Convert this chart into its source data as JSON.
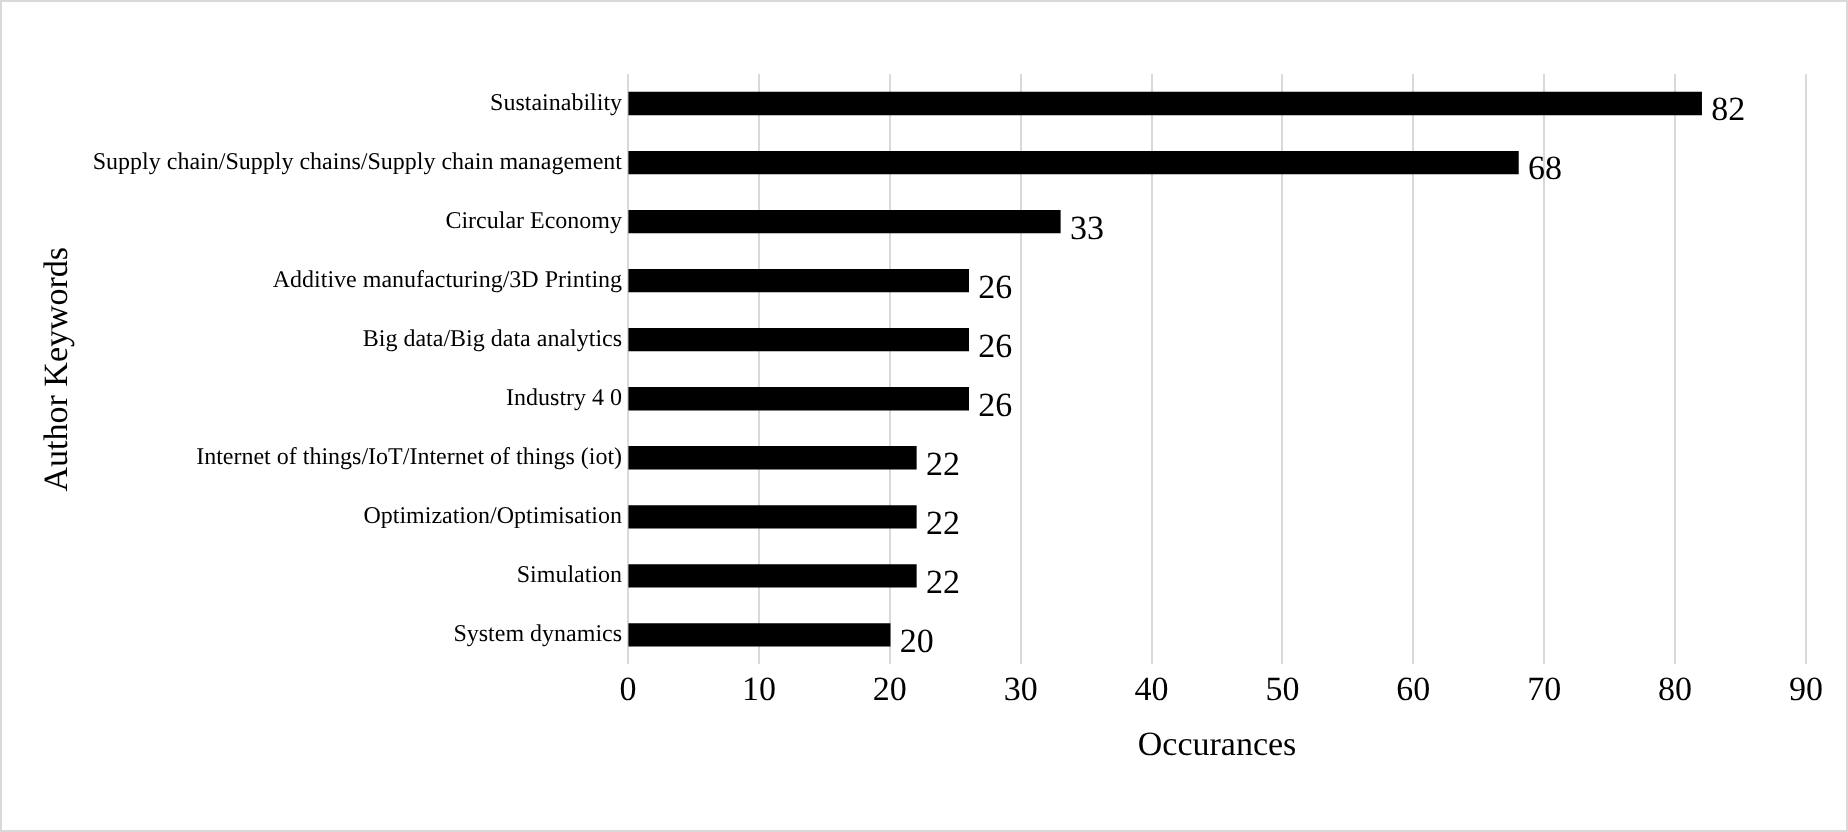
{
  "chart_data": {
    "type": "bar",
    "orientation": "horizontal",
    "xlabel": "Occurances",
    "ylabel": "Author Keywords",
    "categories": [
      "Sustainability",
      "Supply chain/Supply chains/Supply chain management",
      "Circular Economy",
      "Additive manufacturing/3D Printing",
      "Big data/Big data analytics",
      "Industry 4 0",
      "Internet of things/IoT/Internet of things (iot)",
      "Optimization/Optimisation",
      "Simulation",
      "System dynamics"
    ],
    "values": [
      82,
      68,
      33,
      26,
      26,
      26,
      22,
      22,
      22,
      20
    ],
    "color": "#000000",
    "xlim": [
      0,
      90
    ],
    "xticks": [
      0,
      10,
      20,
      30,
      40,
      50,
      60,
      70,
      80,
      90
    ],
    "grid": "x",
    "data_labels": true
  }
}
